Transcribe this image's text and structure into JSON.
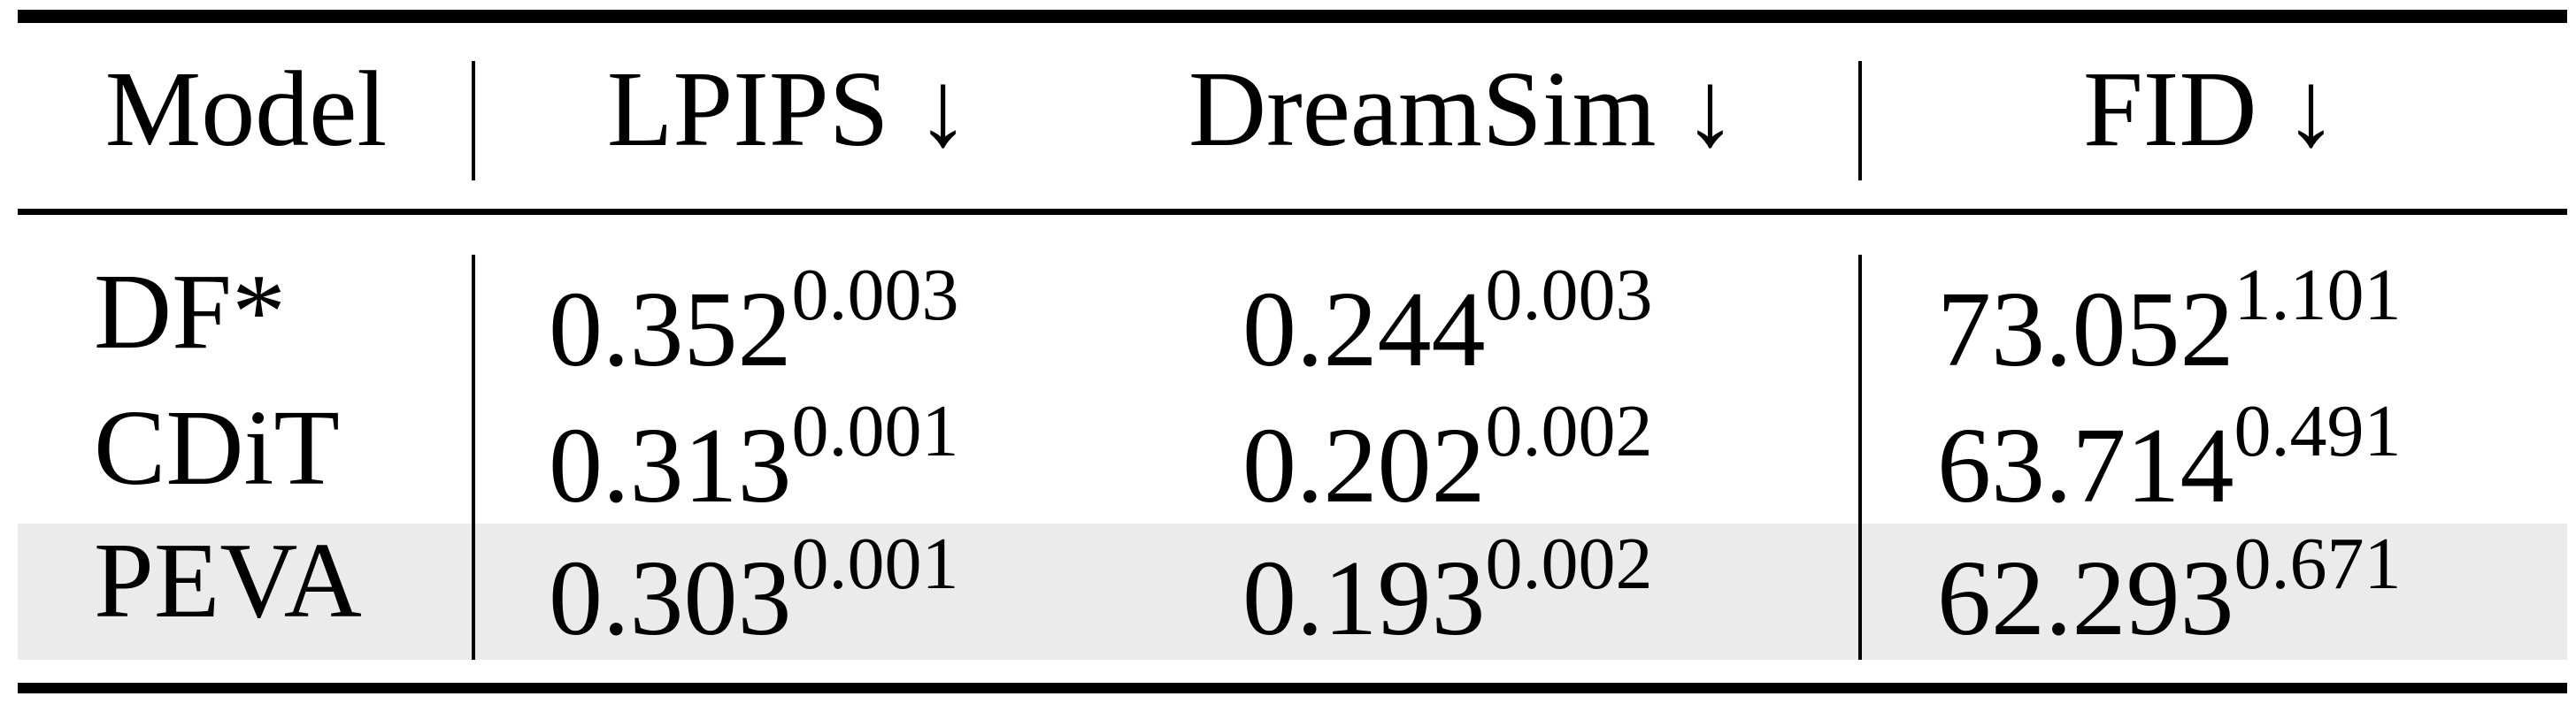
{
  "table": {
    "columns": [
      "Model",
      "LPIPS ↓",
      "DreamSim ↓",
      "FID ↓"
    ],
    "rows": [
      {
        "model": "DF*",
        "lpips": "0.352",
        "lpips_std": "0.003",
        "dreamsim": "0.244",
        "dreamsim_std": "0.003",
        "fid": "73.052",
        "fid_std": "1.101",
        "highlighted": false
      },
      {
        "model": "CDiT",
        "lpips": "0.313",
        "lpips_std": "0.001",
        "dreamsim": "0.202",
        "dreamsim_std": "0.002",
        "fid": "63.714",
        "fid_std": "0.491",
        "highlighted": false
      },
      {
        "model": "PEVA",
        "lpips": "0.303",
        "lpips_std": "0.001",
        "dreamsim": "0.193",
        "dreamsim_std": "0.002",
        "fid": "62.293",
        "fid_std": "0.671",
        "highlighted": true
      }
    ],
    "highlight_color": "#ebebeb"
  }
}
